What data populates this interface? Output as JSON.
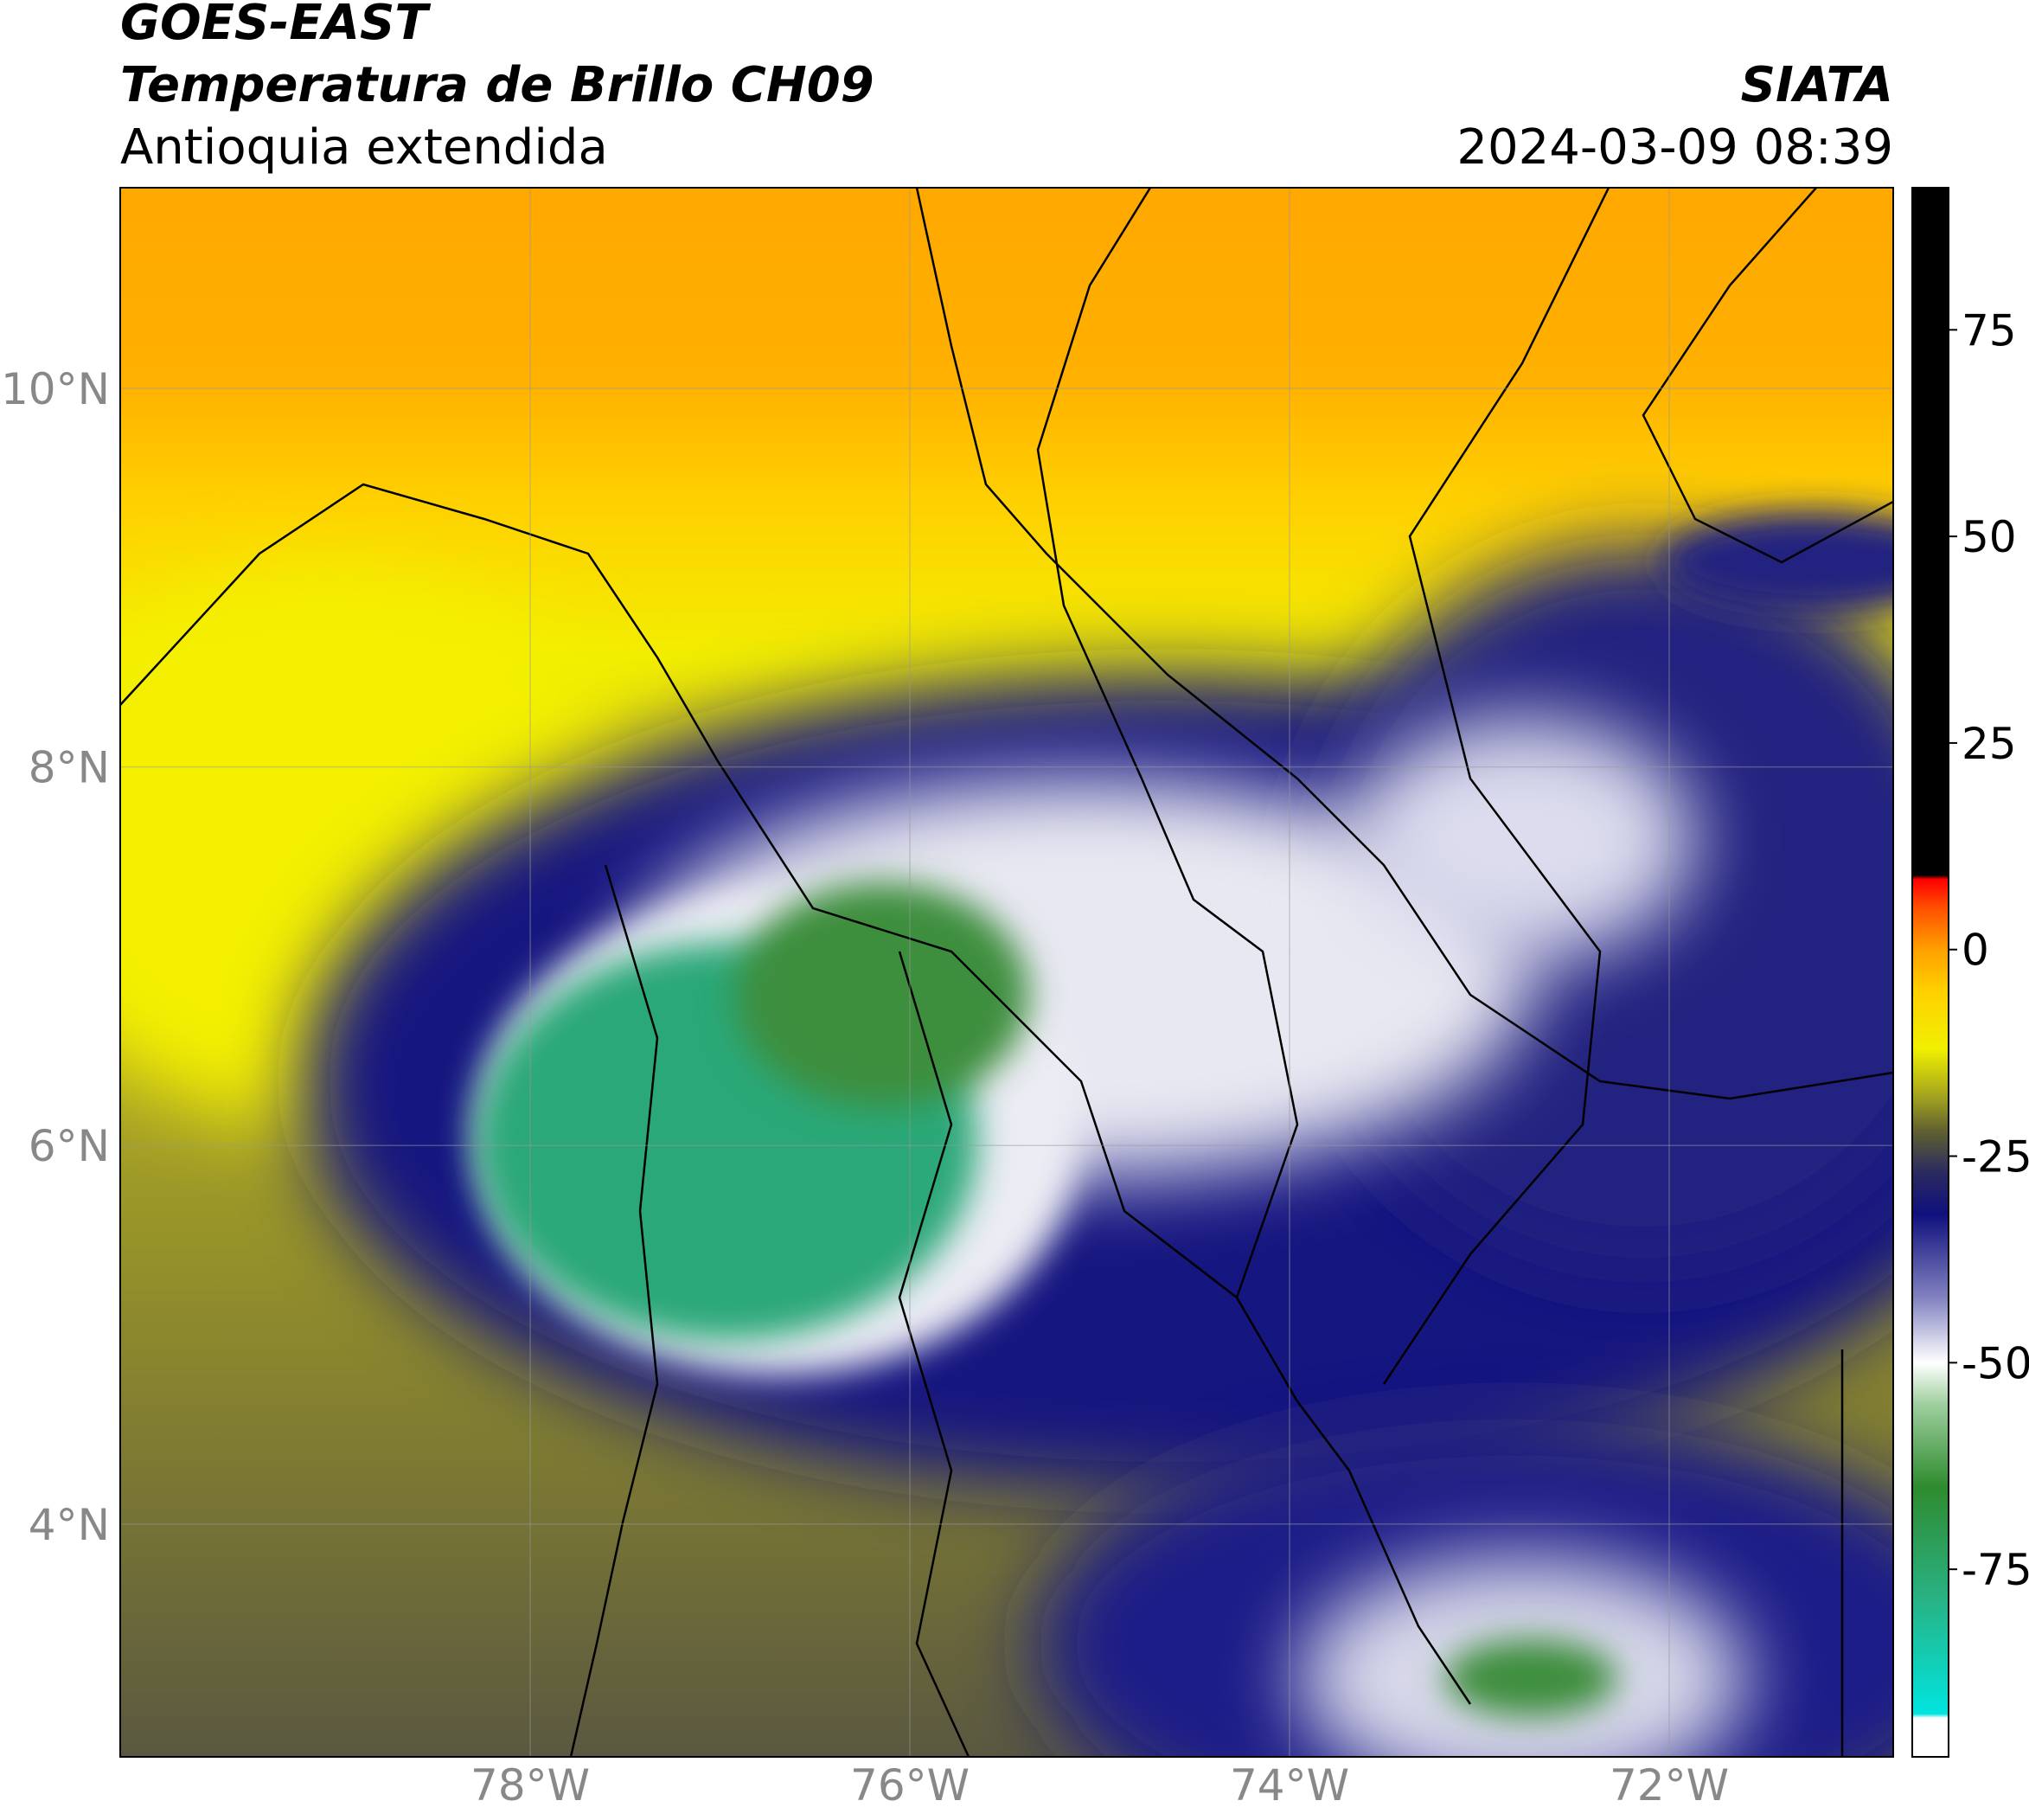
{
  "header": {
    "title": "GOES-EAST",
    "subtitle": "Temperatura de Brillo CH09",
    "region": "Antioquia extendida",
    "source": "SIATA",
    "datetime": "2024-03-09 08:39"
  },
  "map": {
    "xlim": [
      -80.16,
      -70.82
    ],
    "ylim": [
      2.77,
      11.06
    ],
    "xticks": [
      {
        "value": -78,
        "label": "78°W"
      },
      {
        "value": -76,
        "label": "76°W"
      },
      {
        "value": -74,
        "label": "74°W"
      },
      {
        "value": -72,
        "label": "72°W"
      }
    ],
    "yticks": [
      {
        "value": 10,
        "label": "10°N"
      },
      {
        "value": 8,
        "label": "8°N"
      },
      {
        "value": 6,
        "label": "6°N"
      },
      {
        "value": 4,
        "label": "4°N"
      }
    ],
    "grid": true
  },
  "colorbar": {
    "lim": [
      -97.7,
      92.2
    ],
    "ticks": [
      75,
      50,
      25,
      0,
      -25,
      -50,
      -75
    ],
    "stops": [
      {
        "value": -97.7,
        "color": "#ffffff"
      },
      {
        "value": -93,
        "color": "#ffffff"
      },
      {
        "value": -92.5,
        "color": "#00e5e0"
      },
      {
        "value": -78,
        "color": "#2ab080"
      },
      {
        "value": -65,
        "color": "#2e8b2e"
      },
      {
        "value": -55,
        "color": "#9fcf9f"
      },
      {
        "value": -50,
        "color": "#ffffff"
      },
      {
        "value": -42,
        "color": "#8080c0"
      },
      {
        "value": -32,
        "color": "#10107e"
      },
      {
        "value": -27,
        "color": "#2a2a60"
      },
      {
        "value": -22,
        "color": "#606030"
      },
      {
        "value": -18,
        "color": "#a0a020"
      },
      {
        "value": -12,
        "color": "#f0f000"
      },
      {
        "value": -5,
        "color": "#ffd000"
      },
      {
        "value": 0,
        "color": "#ffa000"
      },
      {
        "value": 5,
        "color": "#ff5000"
      },
      {
        "value": 8.5,
        "color": "#ff0000"
      },
      {
        "value": 9,
        "color": "#000000"
      },
      {
        "value": 92.2,
        "color": "#000000"
      }
    ]
  }
}
